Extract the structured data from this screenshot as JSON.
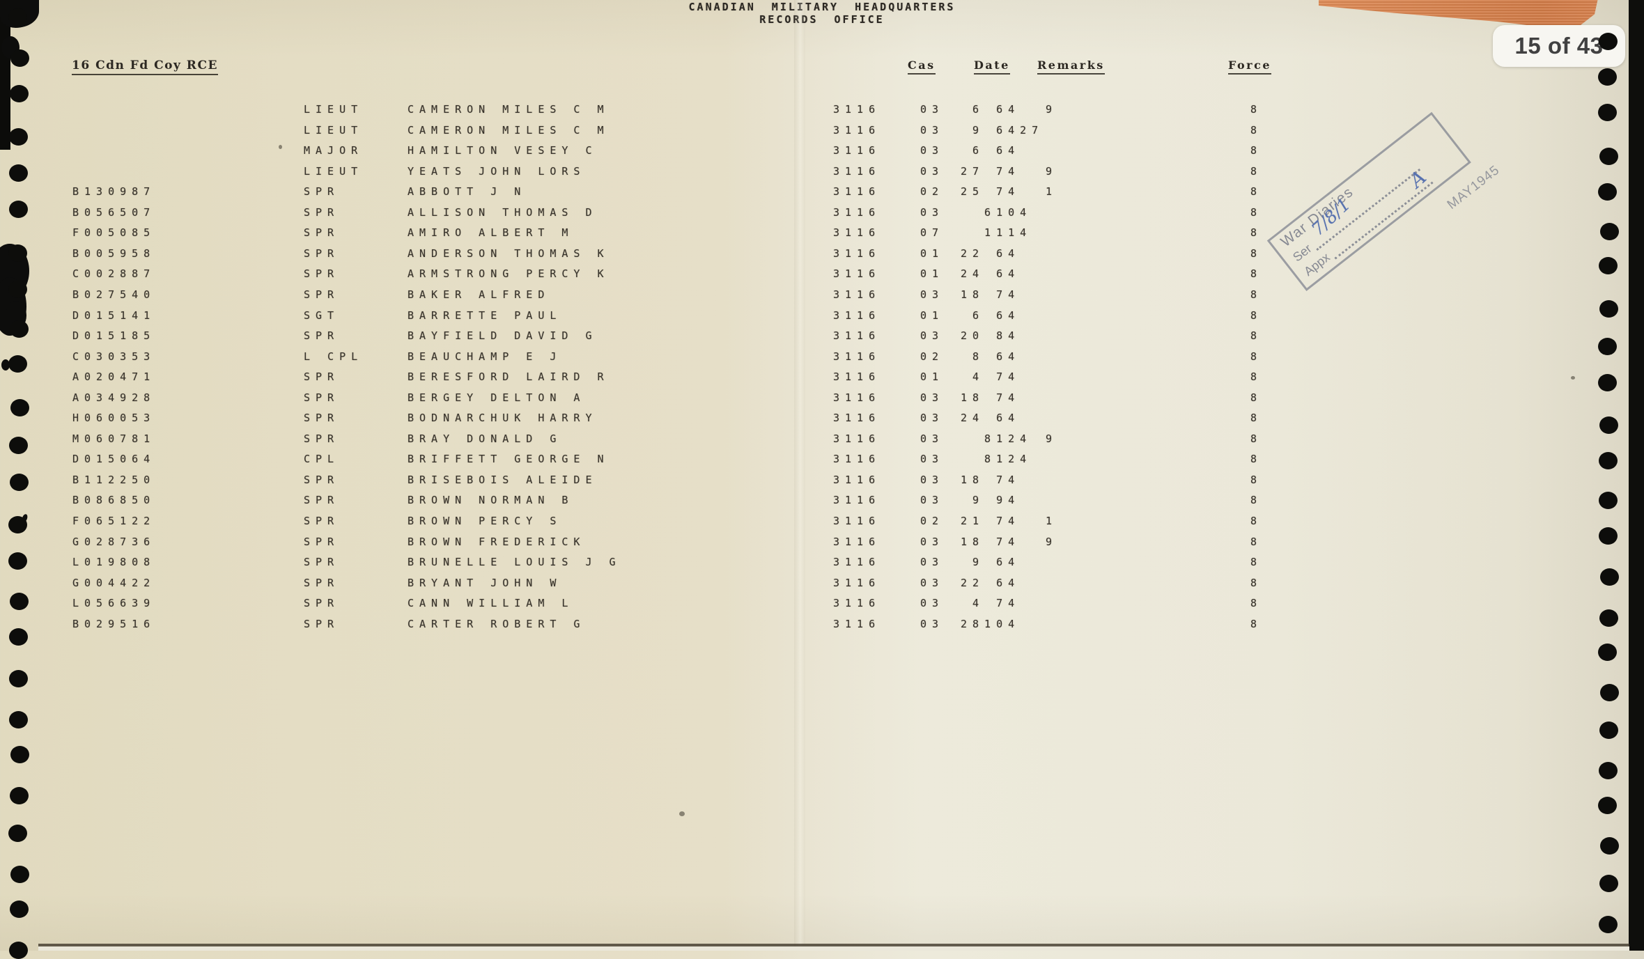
{
  "header": {
    "line1": "CANADIAN MILITARY HEADQUARTERS",
    "line2": "RECORDS OFFICE",
    "unit_title": "16 Cdn Fd Coy RCE",
    "columns": {
      "cas": "Cas",
      "date": "Date",
      "remarks": "Remarks",
      "force": "Force"
    }
  },
  "page_badge": "15 of 43",
  "stamp": {
    "line1": "War Diaries",
    "ser_label": "Ser",
    "ser_value": "7/8/1",
    "appx_label": "Appx",
    "appx_value": "A",
    "date": "MAY1945"
  },
  "table": {
    "rows": [
      {
        "reg": "",
        "rank": "LIEUT",
        "name": "CAMERON MILES C M",
        "cas": "3116",
        "code": "03",
        "date": " 6 64",
        "remark": "9",
        "force": "8"
      },
      {
        "reg": "",
        "rank": "LIEUT",
        "name": "CAMERON MILES C M",
        "cas": "3116",
        "code": "03",
        "date": " 9 6427",
        "remark": "",
        "force": "8"
      },
      {
        "reg": "",
        "rank": "MAJOR",
        "name": "HAMILTON VESEY C",
        "cas": "3116",
        "code": "03",
        "date": " 6 64",
        "remark": "",
        "force": "8"
      },
      {
        "reg": "",
        "rank": "LIEUT",
        "name": "YEATS JOHN LORS",
        "cas": "3116",
        "code": "03",
        "date": "27 74",
        "remark": "9",
        "force": "8"
      },
      {
        "reg": "B130987",
        "rank": "SPR",
        "name": "ABBOTT J N",
        "cas": "3116",
        "code": "02",
        "date": "25 74",
        "remark": "1",
        "force": "8"
      },
      {
        "reg": "B056507",
        "rank": "SPR",
        "name": "ALLISON THOMAS D",
        "cas": "3116",
        "code": "03",
        "date": "  6104",
        "remark": "",
        "force": "8"
      },
      {
        "reg": "F005085",
        "rank": "SPR",
        "name": "AMIRO ALBERT M",
        "cas": "3116",
        "code": "07",
        "date": "  1114",
        "remark": "",
        "force": "8"
      },
      {
        "reg": "B005958",
        "rank": "SPR",
        "name": "ANDERSON THOMAS K",
        "cas": "3116",
        "code": "01",
        "date": "22 64",
        "remark": "",
        "force": "8"
      },
      {
        "reg": "C002887",
        "rank": "SPR",
        "name": "ARMSTRONG PERCY K",
        "cas": "3116",
        "code": "01",
        "date": "24 64",
        "remark": "",
        "force": "8"
      },
      {
        "reg": "B027540",
        "rank": "SPR",
        "name": "BAKER ALFRED",
        "cas": "3116",
        "code": "03",
        "date": "18 74",
        "remark": "",
        "force": "8"
      },
      {
        "reg": "D015141",
        "rank": "SGT",
        "name": "BARRETTE PAUL",
        "cas": "3116",
        "code": "01",
        "date": " 6 64",
        "remark": "",
        "force": "8"
      },
      {
        "reg": "D015185",
        "rank": "SPR",
        "name": "BAYFIELD DAVID G",
        "cas": "3116",
        "code": "03",
        "date": "20 84",
        "remark": "",
        "force": "8"
      },
      {
        "reg": "C030353",
        "rank": "L CPL",
        "name": "BEAUCHAMP E J",
        "cas": "3116",
        "code": "02",
        "date": " 8 64",
        "remark": "",
        "force": "8"
      },
      {
        "reg": "A020471",
        "rank": "SPR",
        "name": "BERESFORD LAIRD R",
        "cas": "3116",
        "code": "01",
        "date": " 4 74",
        "remark": "",
        "force": "8"
      },
      {
        "reg": "A034928",
        "rank": "SPR",
        "name": "BERGEY DELTON A",
        "cas": "3116",
        "code": "03",
        "date": "18 74",
        "remark": "",
        "force": "8"
      },
      {
        "reg": "H060053",
        "rank": "SPR",
        "name": "BODNARCHUK HARRY",
        "cas": "3116",
        "code": "03",
        "date": "24 64",
        "remark": "",
        "force": "8"
      },
      {
        "reg": "M060781",
        "rank": "SPR",
        "name": "BRAY DONALD G",
        "cas": "3116",
        "code": "03",
        "date": "  8124",
        "remark": "9",
        "force": "8"
      },
      {
        "reg": "D015064",
        "rank": "CPL",
        "name": "BRIFFETT GEORGE N",
        "cas": "3116",
        "code": "03",
        "date": "  8124",
        "remark": "",
        "force": "8"
      },
      {
        "reg": "B112250",
        "rank": "SPR",
        "name": "BRISEBOIS ALEIDE",
        "cas": "3116",
        "code": "03",
        "date": "18 74",
        "remark": "",
        "force": "8"
      },
      {
        "reg": "B086850",
        "rank": "SPR",
        "name": "BROWN NORMAN B",
        "cas": "3116",
        "code": "03",
        "date": " 9 94",
        "remark": "",
        "force": "8"
      },
      {
        "reg": "F065122",
        "rank": "SPR",
        "name": "BROWN PERCY S",
        "cas": "3116",
        "code": "02",
        "date": "21 74",
        "remark": "1",
        "force": "8"
      },
      {
        "reg": "G028736",
        "rank": "SPR",
        "name": "BROWN FREDERICK",
        "cas": "3116",
        "code": "03",
        "date": "18 74",
        "remark": "9",
        "force": "8"
      },
      {
        "reg": "L019808",
        "rank": "SPR",
        "name": "BRUNELLE LOUIS J G",
        "cas": "3116",
        "code": "03",
        "date": " 9 64",
        "remark": "",
        "force": "8"
      },
      {
        "reg": "G004422",
        "rank": "SPR",
        "name": "BRYANT JOHN W",
        "cas": "3116",
        "code": "03",
        "date": "22 64",
        "remark": "",
        "force": "8"
      },
      {
        "reg": "L056639",
        "rank": "SPR",
        "name": "CANN WILLIAM L",
        "cas": "3116",
        "code": "03",
        "date": " 4 74",
        "remark": "",
        "force": "8"
      },
      {
        "reg": "B029516",
        "rank": "SPR",
        "name": "CARTER ROBERT G",
        "cas": "3116",
        "code": "03",
        "date": "28104",
        "remark": "",
        "force": "8"
      }
    ]
  }
}
